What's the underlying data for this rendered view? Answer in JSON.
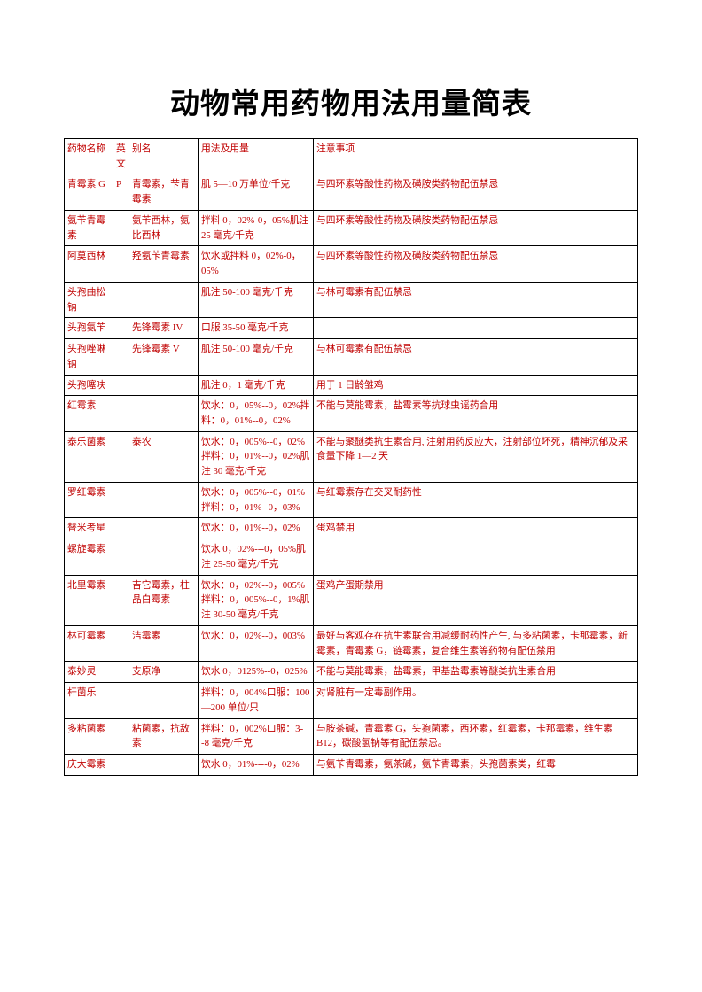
{
  "title": "动物常用药物用法用量简表",
  "headers": {
    "name": "药物名称",
    "en": "英文",
    "alias": "别名",
    "usage": "用法及用量",
    "note": "注意事项"
  },
  "rows": [
    {
      "name": "青霉素 G",
      "en": "P",
      "alias": "青霉素，苄青霉素",
      "usage": "肌 5—10 万单位/千克",
      "note": "与四环素等酸性药物及磺胺类药物配伍禁忌"
    },
    {
      "name": "氨苄青霉素",
      "en": "",
      "alias": "氨苄西林，氨比西林",
      "usage": "拌料 0，02%-0，05%肌注 25 毫克/千克",
      "note": "与四环素等酸性药物及磺胺类药物配伍禁忌"
    },
    {
      "name": "阿莫西林",
      "en": "",
      "alias": "羟氨苄青霉素",
      "usage": "饮水或拌料 0，02%-0，05%",
      "note": "与四环素等酸性药物及磺胺类药物配伍禁忌"
    },
    {
      "name": "头孢曲松钠",
      "en": "",
      "alias": "",
      "usage": "肌注 50-100 毫克/千克",
      "note": "与林可霉素有配伍禁忌"
    },
    {
      "name": "头孢氨苄",
      "en": "",
      "alias": "先锋霉素 IV",
      "usage": "口服 35-50 毫克/千克",
      "note": ""
    },
    {
      "name": "头孢唑啉钠",
      "en": "",
      "alias": "先锋霉素 V",
      "usage": "肌注 50-100 毫克/千克",
      "note": "与林可霉素有配伍禁忌"
    },
    {
      "name": "头孢噻呋",
      "en": "",
      "alias": "",
      "usage": "肌注 0，1 毫克/千克",
      "note": "用于 1 日龄雏鸡"
    },
    {
      "name": "红霉素",
      "en": "",
      "alias": "",
      "usage": "饮水：0，05%--0，02%拌料：0，01%--0，02%",
      "note": "不能与莫能霉素，盐霉素等抗球虫谣药合用"
    },
    {
      "name": "泰乐菌素",
      "en": "",
      "alias": "泰农",
      "usage": "饮水：0，005%--0，02%拌料：0，01%--0，02%肌注 30 毫克/千克",
      "note": "不能与聚醚类抗生素合用, 注射用药反应大，注射部位坏死，精神沉郁及采食量下降 1—2 天"
    },
    {
      "name": "罗红霉素",
      "en": "",
      "alias": "",
      "usage": "饮水：0，005%--0，01%拌料：0，01%--0，03%",
      "note": "与红霉素存在交叉耐药性"
    },
    {
      "name": "替米考星",
      "en": "",
      "alias": "",
      "usage": "饮水：0，01%--0，02%",
      "note": "蛋鸡禁用"
    },
    {
      "name": "螺旋霉素",
      "en": "",
      "alias": "",
      "usage": "饮水 0，02%---0，05%肌注 25-50 毫克/千克",
      "note": ""
    },
    {
      "name": "北里霉素",
      "en": "",
      "alias": "吉它霉素，柱晶白霉素",
      "usage": "饮水：0，02%--0，005%拌料：0，005%--0，1%肌注 30-50 毫克/千克",
      "note": "蛋鸡产蛋期禁用"
    },
    {
      "name": "林可霉素",
      "en": "",
      "alias": "洁霉素",
      "usage": "饮水：0，02%--0，003%",
      "note": "最好与客观存在抗生素联合用减缓耐药性产生, 与多粘菌素，卡那霉素，新霉素，青霉素 G，链霉素，复合维生素等药物有配伍禁用"
    },
    {
      "name": "泰妙灵",
      "en": "",
      "alias": "支原净",
      "usage": "饮水 0，0125%--0，025%",
      "note": "不能与莫能霉素，盐霉素，甲基盐霉素等醚类抗生素合用"
    },
    {
      "name": "杆菌乐",
      "en": "",
      "alias": "",
      "usage": "拌料：0，004%口服：100—200 单位/只",
      "note": "对肾脏有一定毒副作用。"
    },
    {
      "name": "多粘菌素",
      "en": "",
      "alias": "粘菌素，抗敌素",
      "usage": "拌料：0，002%口服：3--8 毫克/千克",
      "note": "与胺茶碱，青霉素 G，头孢菌素，西环素，红霉素，卡那霉素，维生素 B12，碳酸氢钠等有配伍禁忌。"
    },
    {
      "name": "庆大霉素",
      "en": "",
      "alias": "",
      "usage": "饮水 0，01%----0，02%",
      "note": "与氨苄青霉素，氨茶碱，氨苄青霉素，头孢菌素类，红霉"
    }
  ],
  "style": {
    "text_color": "#c00000",
    "border_color": "#000000",
    "background": "#ffffff",
    "title_fontsize": 33,
    "cell_fontsize": 10.8
  }
}
